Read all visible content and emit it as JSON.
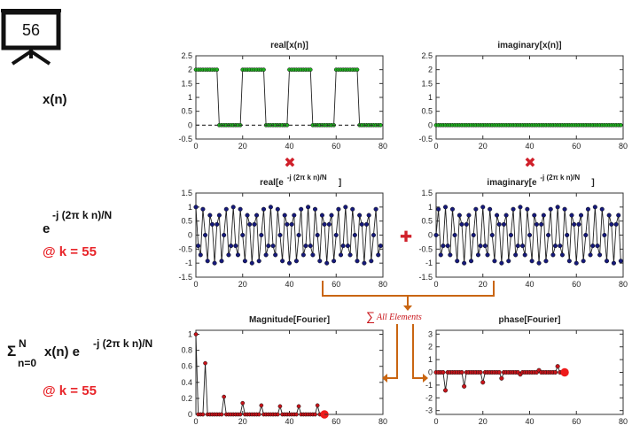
{
  "slide": {
    "number": "56",
    "icon": "presentation-easel-icon"
  },
  "colors": {
    "green_fill": "#1fae1f",
    "blue_fill": "#15197a",
    "red_fill": "#c8141a",
    "accent_red": "#e8252a",
    "arrow_orange": "#c96511",
    "axis": "#333333"
  },
  "rows": {
    "signal": {
      "label": "x(n)"
    },
    "kernel": {
      "base": "e",
      "exponent": "-j (2π k n)/N",
      "k_note": "@ k = 55"
    },
    "sum": {
      "sigma": "Σ",
      "sup": "N",
      "sub": "n=0",
      "expr": "x(n) e",
      "exponent": "-j (2π k n)/N",
      "k_note": "@ k = 55"
    }
  },
  "operators": {
    "multiply": "✖",
    "add": "✚",
    "sum_prefix": "∑",
    "sum_text": "All Elements"
  },
  "plots": {
    "real_x": {
      "title": "real[x(n)]",
      "yticks": [
        "2.5",
        "2",
        "1.5",
        "1",
        "0.5",
        "0",
        "-0.5"
      ],
      "xticks": [
        "0",
        "20",
        "40",
        "60",
        "80"
      ]
    },
    "imag_x": {
      "title": "imaginary[x(n)]",
      "yticks": [
        "2.5",
        "2",
        "1.5",
        "1",
        "0.5",
        "0",
        "-0.5"
      ],
      "xticks": [
        "0",
        "20",
        "40",
        "60",
        "80"
      ]
    },
    "real_e": {
      "title_main": "real[e",
      "title_sup": "-j (2π k n)/N",
      "title_end": "]",
      "yticks": [
        "1.5",
        "1",
        "0.5",
        "0",
        "-0.5",
        "-1",
        "-1.5"
      ],
      "xticks": [
        "0",
        "20",
        "40",
        "60",
        "80"
      ]
    },
    "imag_e": {
      "title_main": "imaginary[e",
      "title_sup": "-j (2π k n)/N",
      "title_end": "]",
      "yticks": [
        "1.5",
        "1",
        "0.5",
        "0",
        "-0.5",
        "-1",
        "-1.5"
      ],
      "xticks": [
        "0",
        "20",
        "40",
        "60",
        "80"
      ]
    },
    "mag": {
      "title": "Magnitude[Fourier]",
      "yticks": [
        "1",
        "0.8",
        "0.6",
        "0.4",
        "0.2",
        "0"
      ],
      "xticks": [
        "0",
        "20",
        "40",
        "60",
        "80"
      ]
    },
    "phase": {
      "title": "phase[Fourier]",
      "yticks": [
        "3",
        "2",
        "1",
        "0",
        "-1",
        "-2",
        "-3"
      ],
      "xticks": [
        "0",
        "20",
        "40",
        "60",
        "80"
      ]
    }
  },
  "chart_data": [
    {
      "type": "line",
      "title": "real[x(n)]",
      "n": 80,
      "xlim": [
        0,
        80
      ],
      "ylim": [
        -0.5,
        2.5
      ],
      "description_values": {
        "high": 2,
        "low": 0,
        "high_runs": [
          [
            0,
            9
          ],
          [
            20,
            29
          ],
          [
            40,
            49
          ],
          [
            60,
            69
          ]
        ]
      }
    },
    {
      "type": "line",
      "title": "imaginary[x(n)]",
      "n": 80,
      "xlim": [
        0,
        80
      ],
      "ylim": [
        -0.5,
        2.5
      ],
      "constant": 0
    },
    {
      "type": "line",
      "title": "real[e^-j (2π k n)/N]",
      "n": 80,
      "k": 55,
      "N": 80,
      "xlim": [
        0,
        80
      ],
      "ylim": [
        -1.5,
        1.5
      ]
    },
    {
      "type": "line",
      "title": "imaginary[e^-j (2π k n)/N]",
      "n": 80,
      "k": 55,
      "N": 80,
      "xlim": [
        0,
        80
      ],
      "ylim": [
        -1.5,
        1.5
      ]
    },
    {
      "type": "line",
      "title": "Magnitude[Fourier]",
      "xlim": [
        0,
        80
      ],
      "ylim": [
        0,
        1
      ],
      "computed_upto_k": 55,
      "highlight_k": 55
    },
    {
      "type": "line",
      "title": "phase[Fourier]",
      "xlim": [
        0,
        80
      ],
      "ylim": [
        -3.3,
        3.3
      ],
      "computed_upto_k": 55,
      "highlight_k": 55
    }
  ]
}
